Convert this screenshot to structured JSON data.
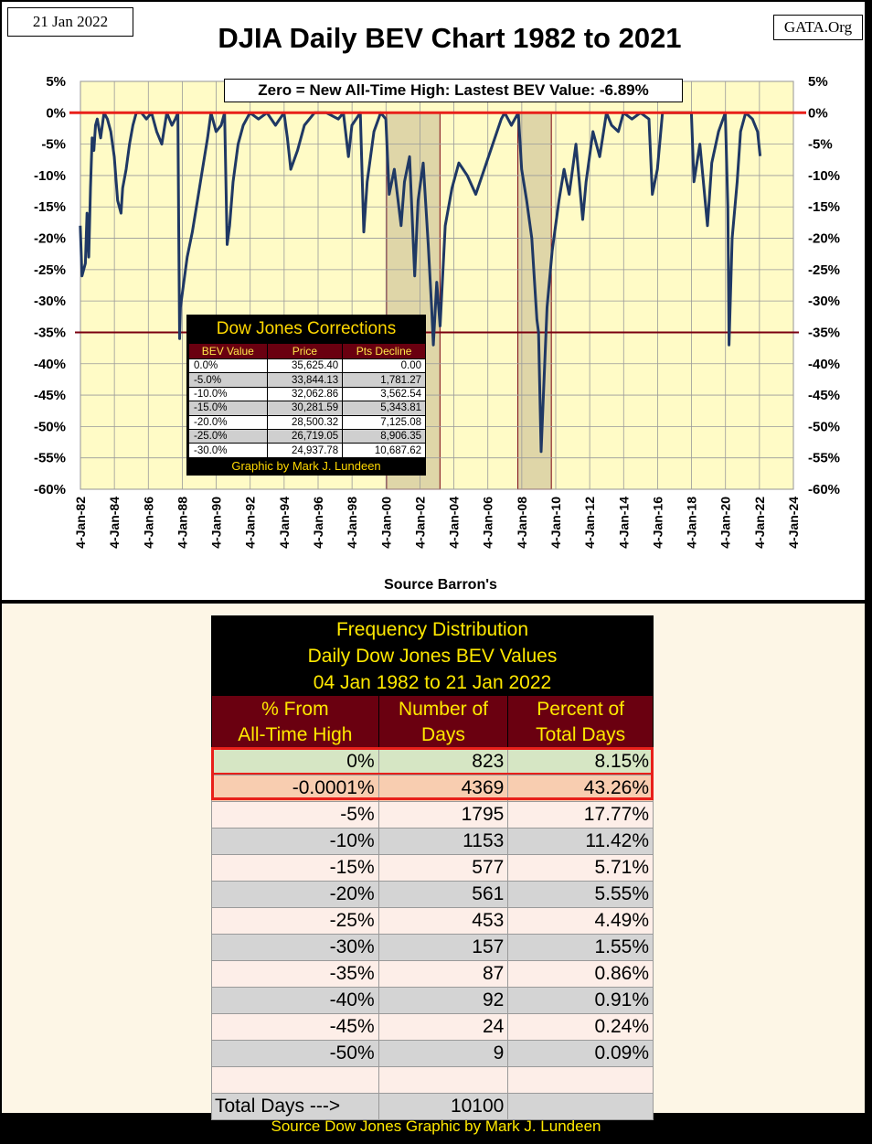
{
  "header": {
    "date": "21 Jan 2022",
    "site": "GATA.Org",
    "title": "DJIA Daily BEV Chart 1982 to 2021",
    "subtitle": "Zero = New All-Time High: Lastest BEV Value: -6.89%",
    "source": "Source Barron's"
  },
  "chart_data": {
    "type": "line",
    "title": "DJIA Daily BEV Chart 1982 to 2021",
    "xlabel": "Source Barron's",
    "ylabel": "",
    "ylim": [
      -60,
      5
    ],
    "xlim": [
      1982.01,
      2024.01
    ],
    "y_ticks": [
      "5%",
      "0%",
      "-5%",
      "-10%",
      "-15%",
      "-20%",
      "-25%",
      "-30%",
      "-35%",
      "-40%",
      "-45%",
      "-50%",
      "-55%",
      "-60%"
    ],
    "x_ticks": [
      "4-Jan-82",
      "4-Jan-84",
      "4-Jan-86",
      "4-Jan-88",
      "4-Jan-90",
      "4-Jan-92",
      "4-Jan-94",
      "4-Jan-96",
      "4-Jan-98",
      "4-Jan-00",
      "4-Jan-02",
      "4-Jan-04",
      "4-Jan-06",
      "4-Jan-08",
      "4-Jan-10",
      "4-Jan-12",
      "4-Jan-14",
      "4-Jan-16",
      "4-Jan-18",
      "4-Jan-20",
      "4-Jan-22",
      "4-Jan-24"
    ],
    "reference_lines": [
      {
        "name": "new-high",
        "value": 0,
        "color": "#e8201a"
      },
      {
        "name": "minus-35",
        "value": -35,
        "color": "#7a0010"
      }
    ],
    "shaded_periods": [
      [
        2000.04,
        2003.19
      ],
      [
        2007.78,
        2009.75
      ]
    ],
    "series": [
      {
        "name": "DJIA BEV",
        "color": "#1f3864",
        "x": [
          1982.0,
          1982.1,
          1982.3,
          1982.4,
          1982.5,
          1982.6,
          1982.7,
          1982.8,
          1982.9,
          1983.0,
          1983.2,
          1983.4,
          1983.6,
          1983.8,
          1984.0,
          1984.2,
          1984.4,
          1984.5,
          1984.7,
          1984.9,
          1985.1,
          1985.3,
          1985.6,
          1985.9,
          1986.2,
          1986.5,
          1986.8,
          1987.1,
          1987.4,
          1987.6,
          1987.75,
          1987.8,
          1987.85,
          1987.9,
          1988.1,
          1988.3,
          1988.6,
          1988.9,
          1989.2,
          1989.5,
          1989.7,
          1989.8,
          1990.0,
          1990.3,
          1990.5,
          1990.65,
          1990.8,
          1991.0,
          1991.3,
          1991.6,
          1992.0,
          1992.5,
          1993.0,
          1993.5,
          1994.0,
          1994.2,
          1994.4,
          1994.8,
          1995.2,
          1995.8,
          1996.5,
          1997.2,
          1997.5,
          1997.8,
          1998.0,
          1998.5,
          1998.7,
          1998.9,
          1999.3,
          1999.7,
          2000.0,
          2000.2,
          2000.5,
          2000.9,
          2001.1,
          2001.4,
          2001.7,
          2001.9,
          2002.2,
          2002.5,
          2002.7,
          2002.8,
          2003.0,
          2003.2,
          2003.5,
          2003.9,
          2004.3,
          2004.8,
          2005.3,
          2005.8,
          2006.3,
          2006.8,
          2007.0,
          2007.4,
          2007.8,
          2008.0,
          2008.3,
          2008.6,
          2008.9,
          2009.0,
          2009.15,
          2009.3,
          2009.5,
          2009.8,
          2010.2,
          2010.5,
          2010.8,
          2011.2,
          2011.6,
          2011.8,
          2012.2,
          2012.6,
          2013.0,
          2013.3,
          2013.7,
          2014.0,
          2014.5,
          2015.0,
          2015.5,
          2015.7,
          2016.0,
          2016.3,
          2016.8,
          2017.2,
          2017.8,
          2018.0,
          2018.15,
          2018.5,
          2018.95,
          2019.2,
          2019.6,
          2020.0,
          2020.15,
          2020.22,
          2020.4,
          2020.7,
          2020.9,
          2021.2,
          2021.6,
          2021.9,
          2022.05
        ],
        "y": [
          -18,
          -26,
          -24,
          -16,
          -23,
          -12,
          -4,
          -6,
          -2,
          -1,
          -4,
          0,
          -1,
          -3,
          -7,
          -14,
          -16,
          -12,
          -9,
          -5,
          -2,
          0,
          0,
          -1,
          0,
          -3,
          -5,
          0,
          -2,
          -1,
          0,
          -18,
          -36,
          -31,
          -27,
          -23,
          -19,
          -14,
          -9,
          -4,
          0,
          -1,
          -3,
          -2,
          0,
          -21,
          -18,
          -11,
          -5,
          -2,
          0,
          -1,
          0,
          -2,
          0,
          -4,
          -9,
          -6,
          -2,
          0,
          0,
          -1,
          0,
          -7,
          -2,
          0,
          -19,
          -11,
          -3,
          0,
          -1,
          -13,
          -9,
          -18,
          -11,
          -7,
          -26,
          -14,
          -8,
          -21,
          -31,
          -37,
          -27,
          -34,
          -18,
          -12,
          -8,
          -10,
          -13,
          -9,
          -5,
          -1,
          0,
          -2,
          0,
          -9,
          -14,
          -20,
          -33,
          -35,
          -54,
          -44,
          -31,
          -22,
          -14,
          -9,
          -13,
          -5,
          -17,
          -11,
          -3,
          -7,
          0,
          -2,
          -3,
          0,
          -1,
          0,
          -1,
          -13,
          -9,
          0,
          0,
          0,
          0,
          0,
          -11,
          -5,
          -18,
          -8,
          -3,
          0,
          -15,
          -37,
          -20,
          -11,
          -3,
          0,
          -1,
          -3,
          -6.9
        ]
      }
    ]
  },
  "corrections": {
    "title": "Dow Jones Corrections",
    "headers": [
      "BEV Value",
      "Price",
      "Pts Decline"
    ],
    "rows": [
      [
        "0.0%",
        "35,625.40",
        "0.00"
      ],
      [
        "-5.0%",
        "33,844.13",
        "1,781.27"
      ],
      [
        "-10.0%",
        "32,062.86",
        "3,562.54"
      ],
      [
        "-15.0%",
        "30,281.59",
        "5,343.81"
      ],
      [
        "-20.0%",
        "28,500.32",
        "7,125.08"
      ],
      [
        "-25.0%",
        "26,719.05",
        "8,906.35"
      ],
      [
        "-30.0%",
        "24,937.78",
        "10,687.62"
      ]
    ],
    "credit": "Graphic by Mark J. Lundeen"
  },
  "frequency": {
    "title_lines": [
      "Frequency Distribution",
      "Daily Dow Jones BEV Values",
      "04 Jan 1982 to 21 Jan 2022"
    ],
    "headers": [
      [
        "% From",
        "All-Time High"
      ],
      [
        "Number of",
        "Days"
      ],
      [
        "Percent of",
        "Total Days"
      ]
    ],
    "rows": [
      [
        "0%",
        "823",
        "8.15%"
      ],
      [
        "-0.0001%",
        "4369",
        "43.26%"
      ],
      [
        "-5%",
        "1795",
        "17.77%"
      ],
      [
        "-10%",
        "1153",
        "11.42%"
      ],
      [
        "-15%",
        "577",
        "5.71%"
      ],
      [
        "-20%",
        "561",
        "5.55%"
      ],
      [
        "-25%",
        "453",
        "4.49%"
      ],
      [
        "-30%",
        "157",
        "1.55%"
      ],
      [
        "-35%",
        "87",
        "0.86%"
      ],
      [
        "-40%",
        "92",
        "0.91%"
      ],
      [
        "-45%",
        "24",
        "0.24%"
      ],
      [
        "-50%",
        "9",
        "0.09%"
      ],
      [
        "",
        "",
        ""
      ]
    ],
    "total": [
      "Total Days --->",
      "10100",
      ""
    ],
    "footer": "Source Dow Jones    Graphic by Mark J. Lundeen"
  },
  "colors": {
    "plot_bg": "#fffbc6",
    "series": "#1f3864",
    "zero_line": "#e8201a",
    "ref_line": "#7a0010",
    "shade": "#d9cfa2",
    "highlight_border": "#e8201a"
  }
}
